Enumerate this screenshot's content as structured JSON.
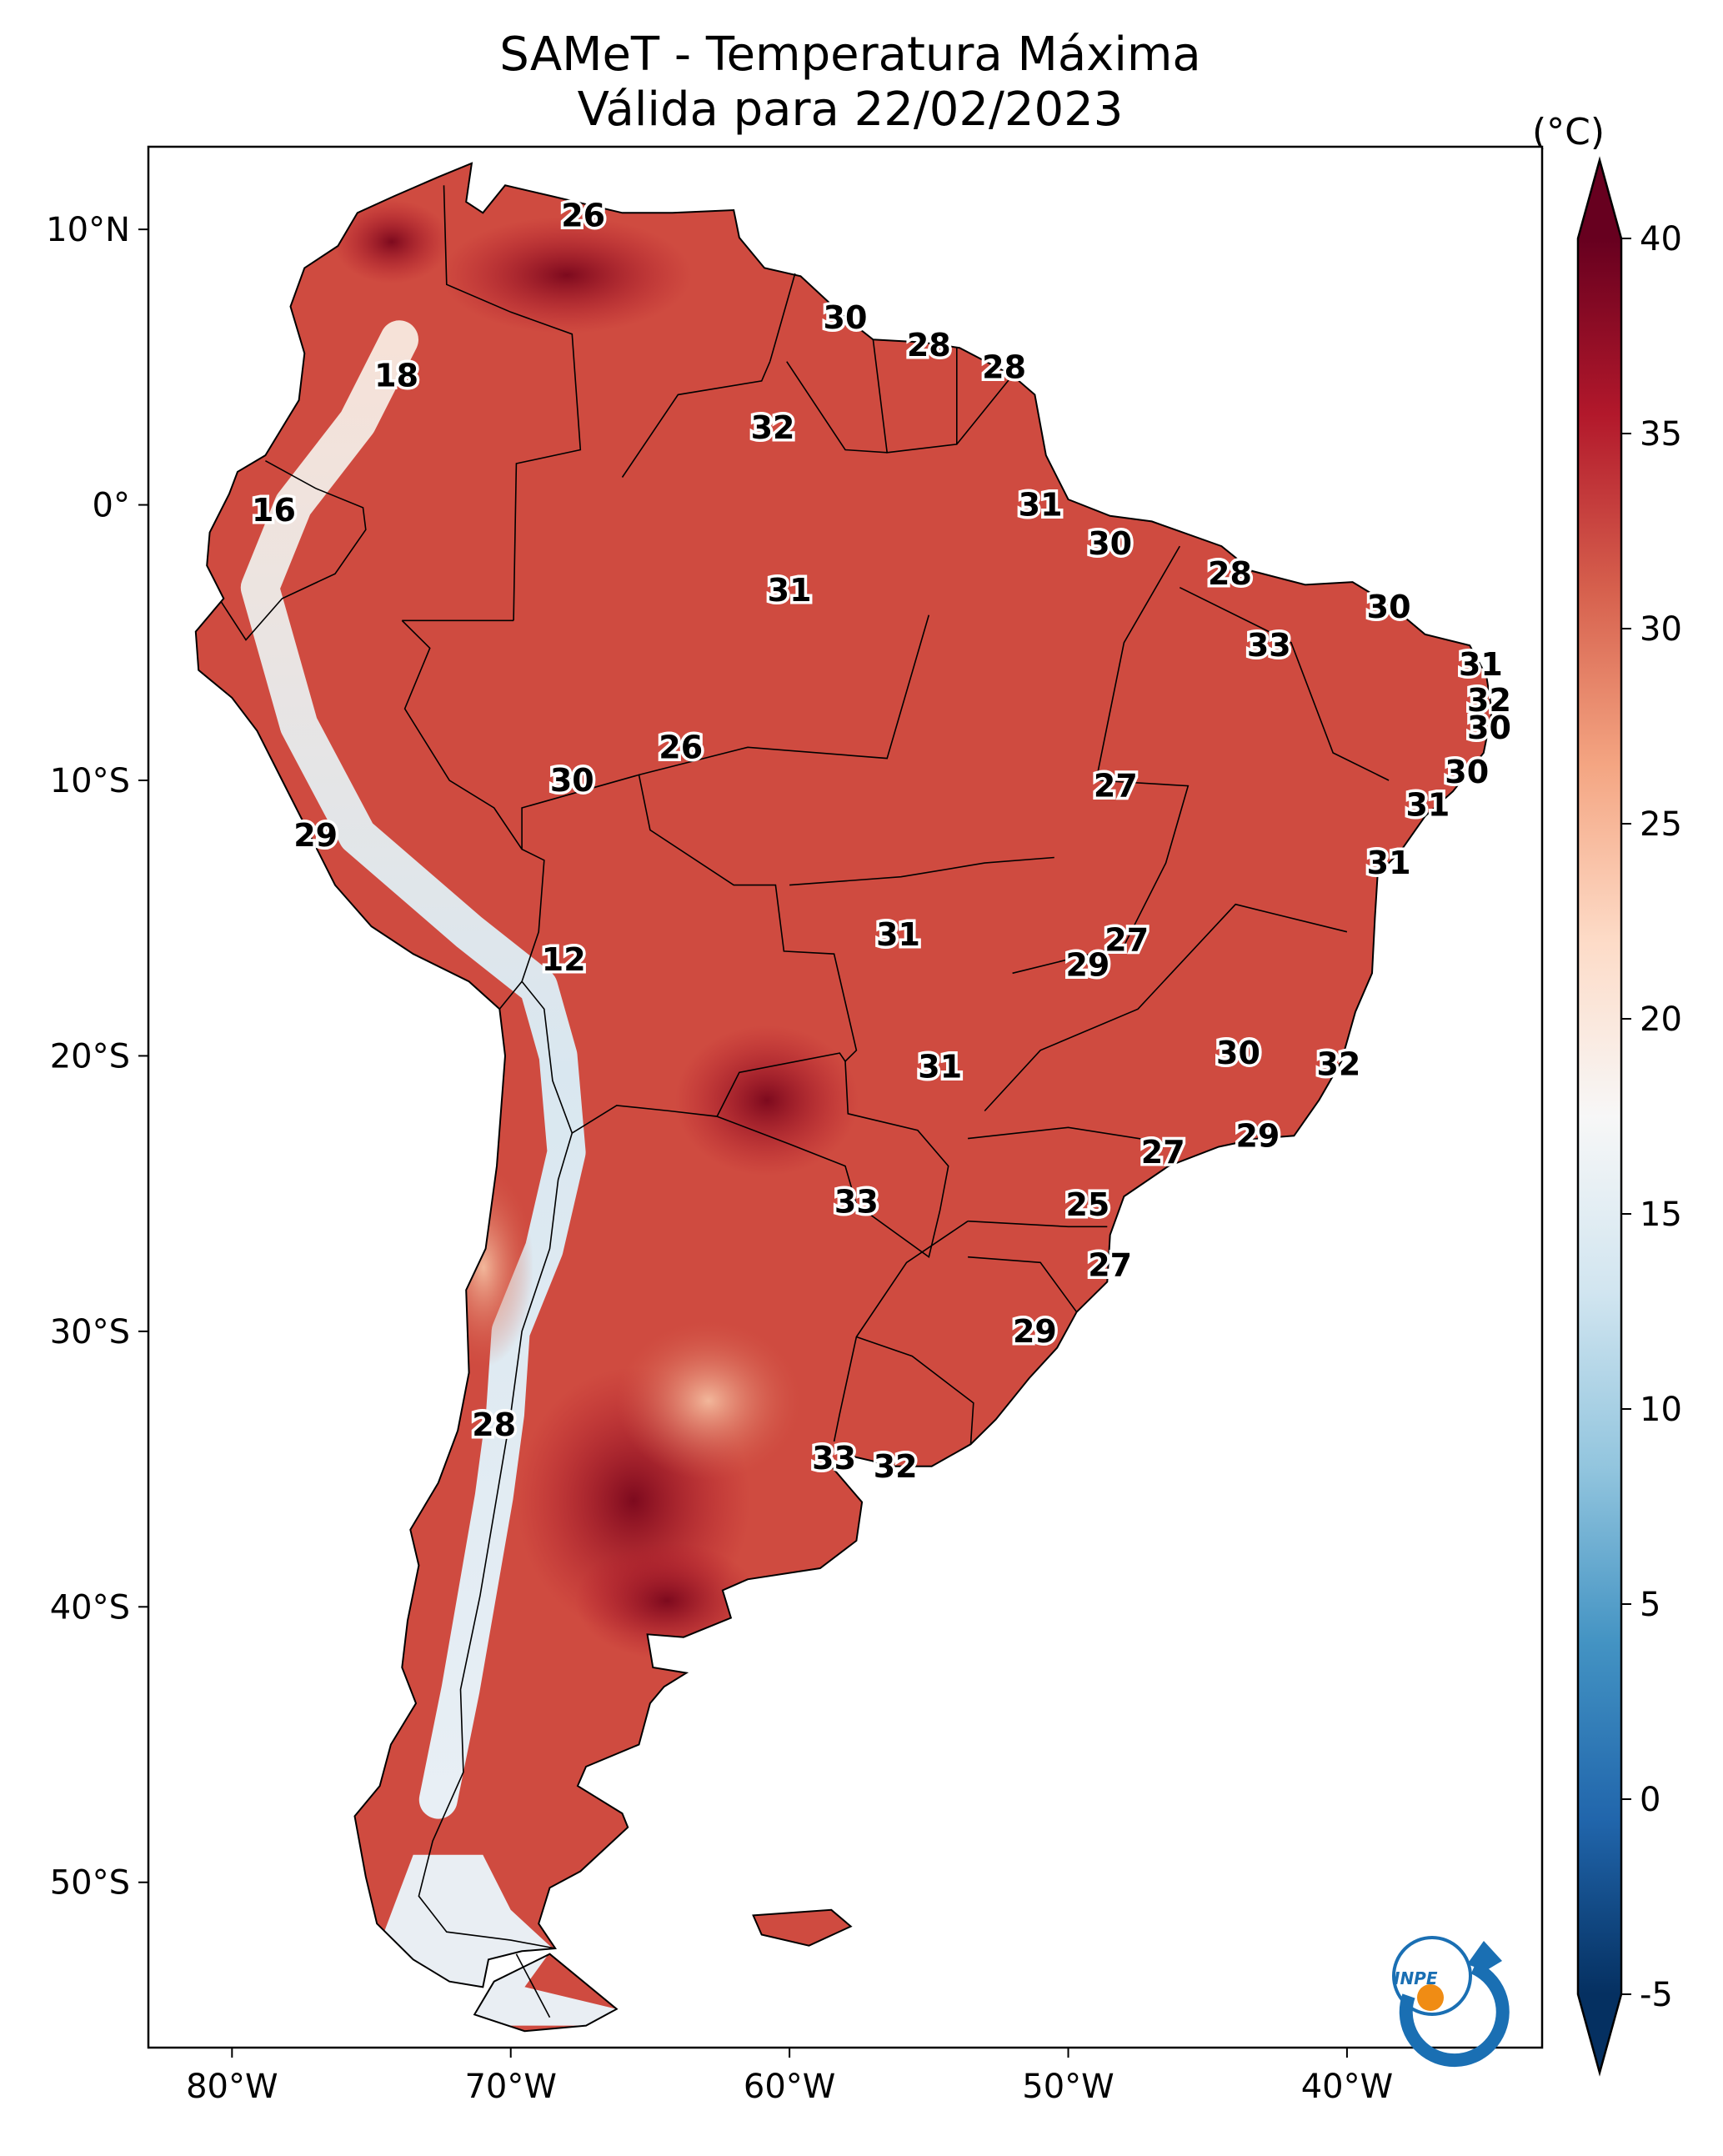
{
  "title": {
    "line1": "SAMeT - Temperatura Máxima",
    "line2": "Válida para 22/02/2023"
  },
  "colorbar": {
    "unit": "(°C)",
    "ticks": [
      "40",
      "35",
      "30",
      "25",
      "20",
      "15",
      "10",
      "5",
      "0",
      "-5"
    ],
    "tick_values": [
      40,
      35,
      30,
      25,
      20,
      15,
      10,
      5,
      0,
      -5
    ],
    "range": [
      -5,
      40
    ],
    "extend": "both",
    "colors": [
      "#053061",
      "#2166ac",
      "#4393c3",
      "#92c5de",
      "#d1e5f0",
      "#f7f7f7",
      "#fddbc7",
      "#f4a582",
      "#d6604d",
      "#b2182b",
      "#67001f"
    ]
  },
  "axes": {
    "lat_ticks": [
      "10°N",
      "0°",
      "10°S",
      "20°S",
      "30°S",
      "40°S",
      "50°S"
    ],
    "lat_values": [
      10,
      0,
      -10,
      -20,
      -30,
      -40,
      -50
    ],
    "lon_ticks": [
      "80°W",
      "70°W",
      "60°W",
      "50°W",
      "40°W"
    ],
    "lon_values": [
      -80,
      -70,
      -60,
      -50,
      -40
    ],
    "lon_range": [
      -83,
      -33
    ],
    "lat_range": [
      -56,
      13
    ]
  },
  "city_labels": [
    {
      "text": "26",
      "lon": -67.4,
      "lat": 10.5
    },
    {
      "text": "30",
      "lon": -58.0,
      "lat": 6.8
    },
    {
      "text": "28",
      "lon": -55.0,
      "lat": 5.8
    },
    {
      "text": "28",
      "lon": -52.3,
      "lat": 5.0
    },
    {
      "text": "18",
      "lon": -74.1,
      "lat": 4.7
    },
    {
      "text": "32",
      "lon": -60.6,
      "lat": 2.8
    },
    {
      "text": "16",
      "lon": -78.5,
      "lat": -0.2
    },
    {
      "text": "31",
      "lon": -51.0,
      "lat": 0.0
    },
    {
      "text": "30",
      "lon": -48.5,
      "lat": -1.4
    },
    {
      "text": "28",
      "lon": -44.2,
      "lat": -2.5
    },
    {
      "text": "31",
      "lon": -60.0,
      "lat": -3.1
    },
    {
      "text": "30",
      "lon": -38.5,
      "lat": -3.7
    },
    {
      "text": "33",
      "lon": -42.8,
      "lat": -5.1
    },
    {
      "text": "31",
      "lon": -35.2,
      "lat": -5.8
    },
    {
      "text": "32",
      "lon": -34.9,
      "lat": -7.1
    },
    {
      "text": "30",
      "lon": -34.9,
      "lat": -8.1
    },
    {
      "text": "26",
      "lon": -63.9,
      "lat": -8.8
    },
    {
      "text": "30",
      "lon": -67.8,
      "lat": -10.0
    },
    {
      "text": "30",
      "lon": -35.7,
      "lat": -9.7
    },
    {
      "text": "27",
      "lon": -48.3,
      "lat": -10.2
    },
    {
      "text": "31",
      "lon": -37.1,
      "lat": -10.9
    },
    {
      "text": "29",
      "lon": -77.0,
      "lat": -12.0
    },
    {
      "text": "31",
      "lon": -38.5,
      "lat": -13.0
    },
    {
      "text": "31",
      "lon": -56.1,
      "lat": -15.6
    },
    {
      "text": "27",
      "lon": -47.9,
      "lat": -15.8
    },
    {
      "text": "29",
      "lon": -49.3,
      "lat": -16.7
    },
    {
      "text": "12",
      "lon": -68.1,
      "lat": -16.5
    },
    {
      "text": "30",
      "lon": -43.9,
      "lat": -19.9
    },
    {
      "text": "32",
      "lon": -40.3,
      "lat": -20.3
    },
    {
      "text": "31",
      "lon": -54.6,
      "lat": -20.4
    },
    {
      "text": "29",
      "lon": -43.2,
      "lat": -22.9
    },
    {
      "text": "27",
      "lon": -46.6,
      "lat": -23.5
    },
    {
      "text": "33",
      "lon": -57.6,
      "lat": -25.3
    },
    {
      "text": "25",
      "lon": -49.3,
      "lat": -25.4
    },
    {
      "text": "27",
      "lon": -48.5,
      "lat": -27.6
    },
    {
      "text": "29",
      "lon": -51.2,
      "lat": -30.0
    },
    {
      "text": "28",
      "lon": -70.6,
      "lat": -33.4
    },
    {
      "text": "33",
      "lon": -58.4,
      "lat": -34.6
    },
    {
      "text": "32",
      "lon": -56.2,
      "lat": -34.9
    }
  ],
  "logo": {
    "text": "INPE"
  }
}
